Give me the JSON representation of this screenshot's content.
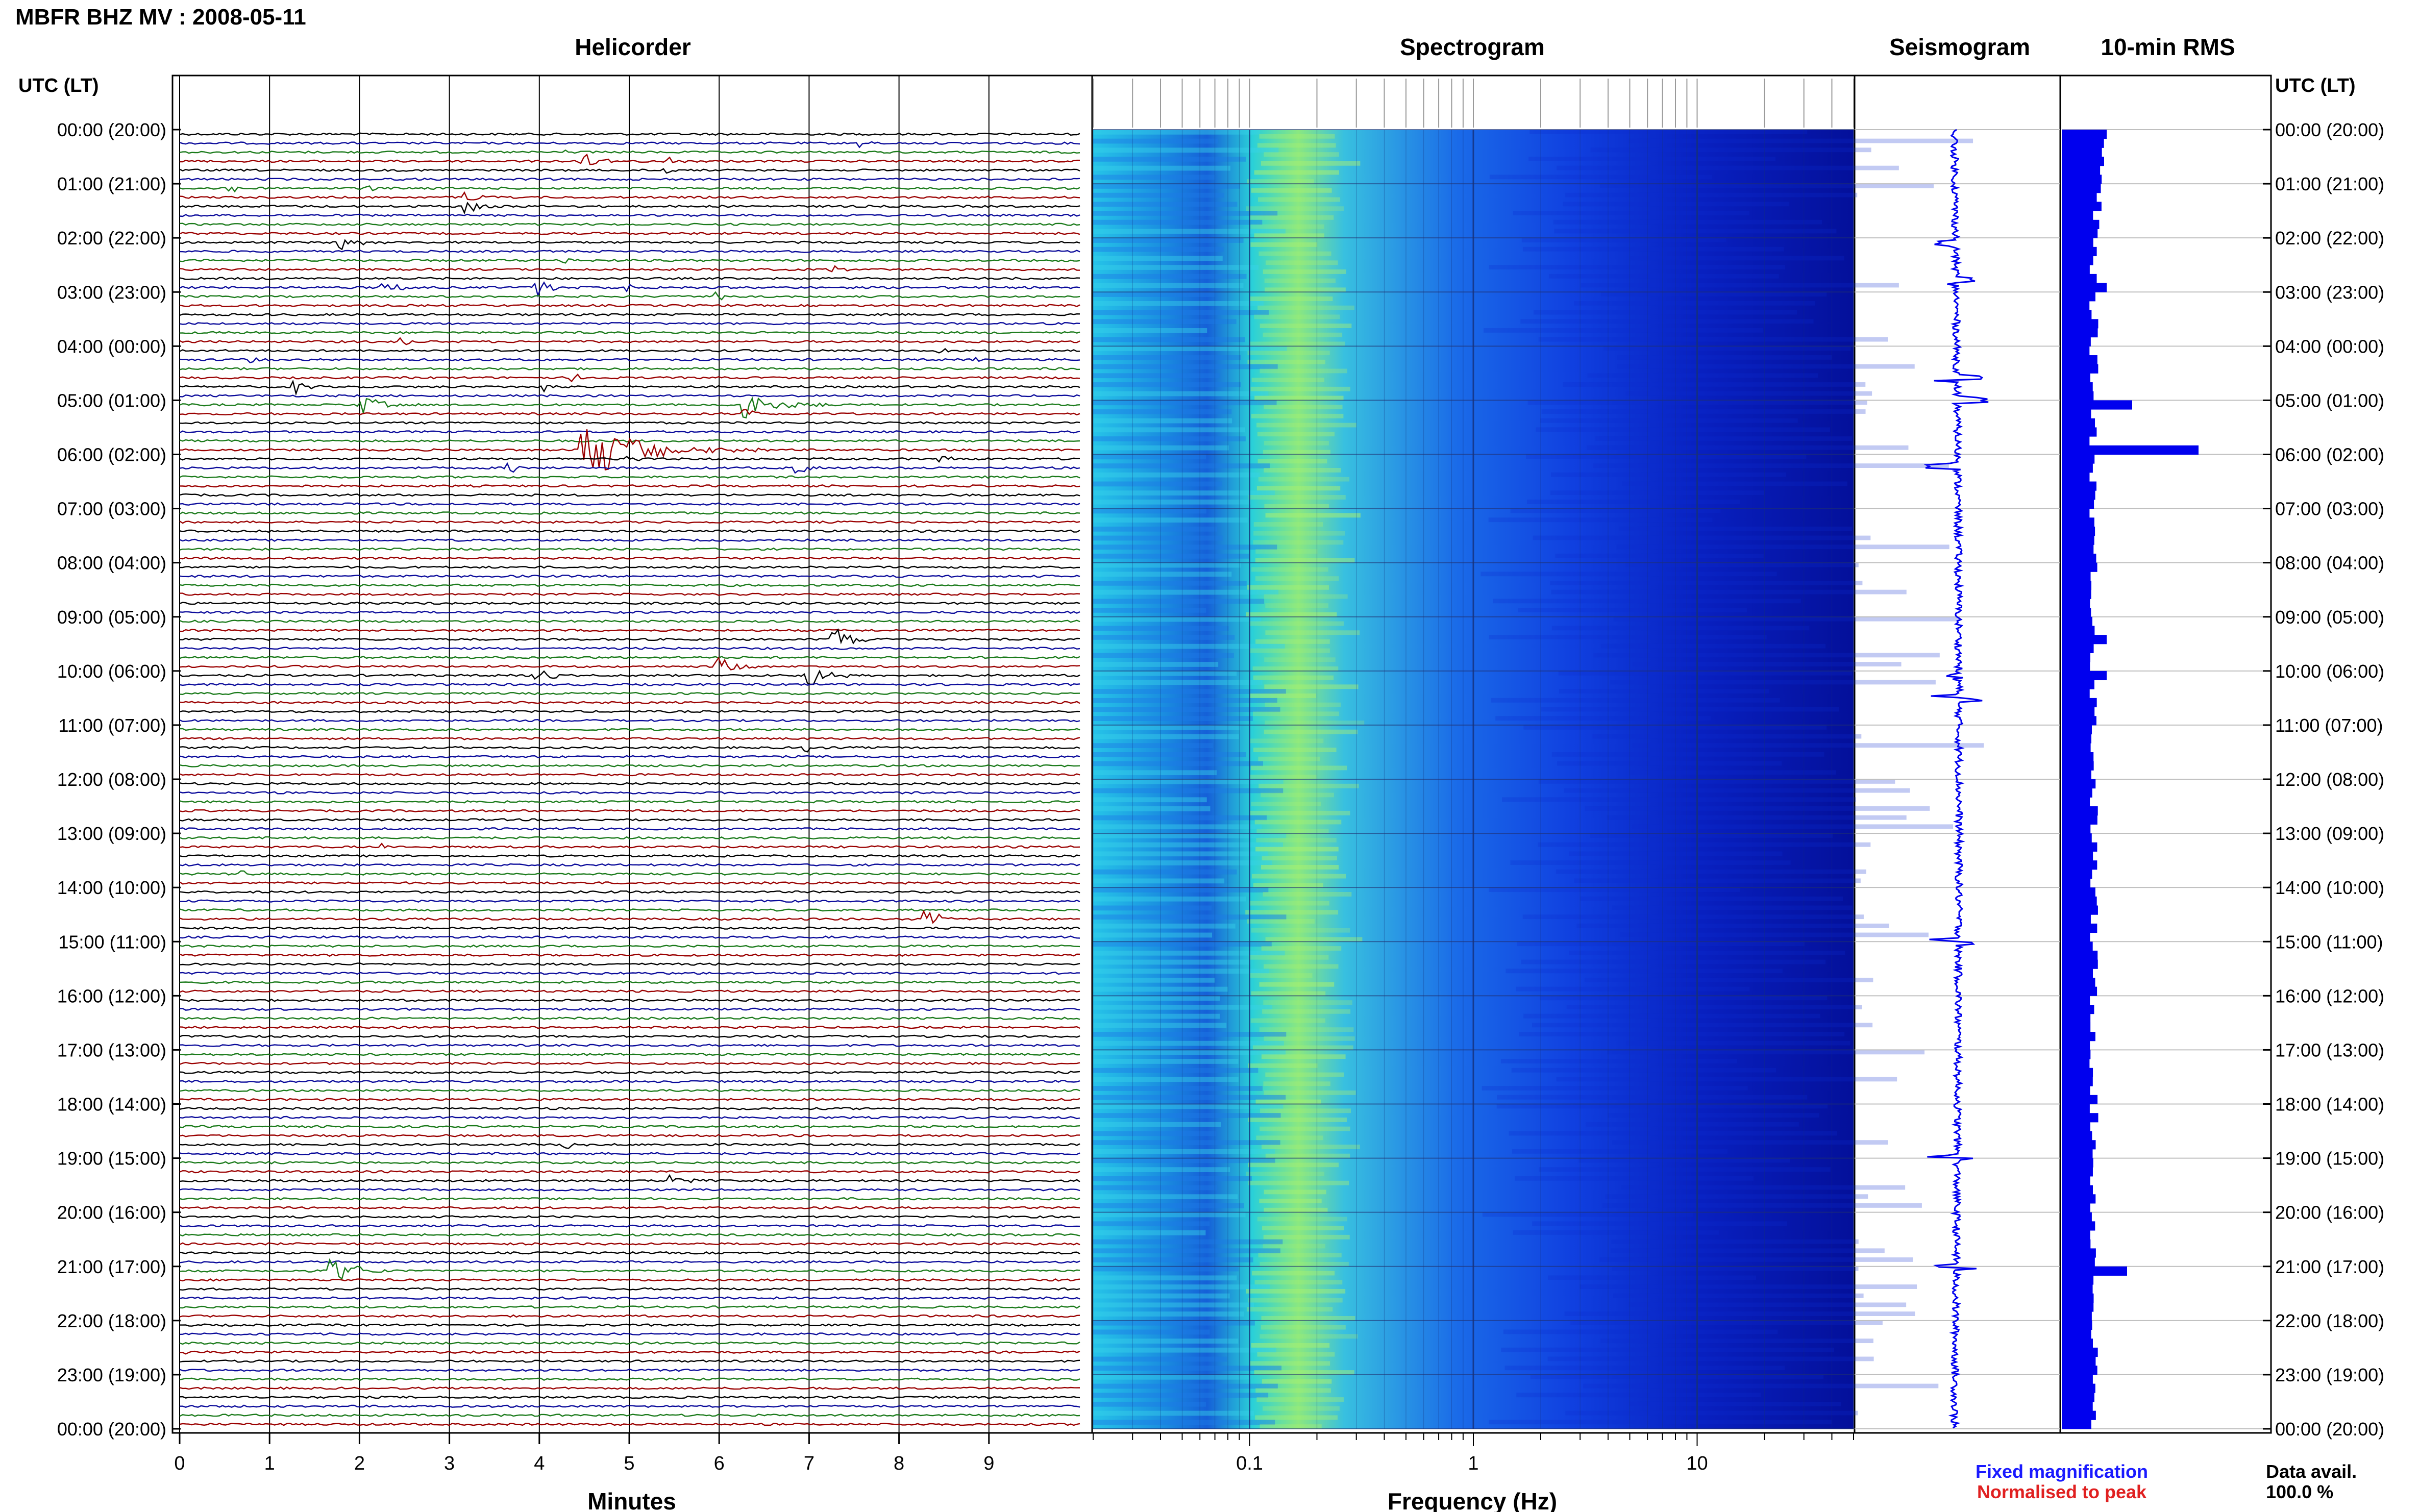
{
  "header": {
    "title": "MBFR BHZ MV : 2008-05-11",
    "utc_label": "UTC (LT)"
  },
  "panels": {
    "helicorder": "Helicorder",
    "spectrogram": "Spectrogram",
    "seismogram": "Seismogram",
    "rms": "10-min RMS"
  },
  "time_labels": [
    "00:00 (20:00)",
    "01:00 (21:00)",
    "02:00 (22:00)",
    "03:00 (23:00)",
    "04:00 (00:00)",
    "05:00 (01:00)",
    "06:00 (02:00)",
    "07:00 (03:00)",
    "08:00 (04:00)",
    "09:00 (05:00)",
    "10:00 (06:00)",
    "11:00 (07:00)",
    "12:00 (08:00)",
    "13:00 (09:00)",
    "14:00 (10:00)",
    "15:00 (11:00)",
    "16:00 (12:00)",
    "17:00 (13:00)",
    "18:00 (14:00)",
    "19:00 (15:00)",
    "20:00 (16:00)",
    "21:00 (17:00)",
    "22:00 (18:00)",
    "23:00 (19:00)",
    "00:00 (20:00)"
  ],
  "axes": {
    "helicorder_xlabel": "Minutes",
    "helicorder_ticks": [
      "0",
      "1",
      "2",
      "3",
      "4",
      "5",
      "6",
      "7",
      "8",
      "9"
    ],
    "spectrogram_xlabel": "Frequency (Hz)",
    "spectrogram_ticks": [
      "0.1",
      "1",
      "10"
    ]
  },
  "legend": {
    "fixed": "Fixed magnification",
    "normalised": "Normalised to peak",
    "fixed_color": "#1a1aff",
    "normalised_color": "#e02020"
  },
  "data_avail": {
    "label": "Data avail.",
    "value": "100.0 %"
  },
  "colors": {
    "trace_cycle": [
      "#000000",
      "#0a0a9a",
      "#1a7a1a",
      "#9a0000"
    ],
    "rms": "#0000ee",
    "seis": "#0000ee"
  },
  "chart_data": [
    {
      "type": "line",
      "name": "helicorder",
      "title": "Helicorder",
      "xlabel": "Minutes",
      "xlim": [
        0,
        10
      ],
      "rows": 144,
      "row_minutes": 10,
      "events": [
        {
          "row": 1,
          "minute": 7.6,
          "amp": 0.6
        },
        {
          "row": 2,
          "minute": 4.3,
          "amp": 0.5
        },
        {
          "row": 3,
          "minute": 4.5,
          "amp": 1.2
        },
        {
          "row": 3,
          "minute": 5.4,
          "amp": 0.9
        },
        {
          "row": 4,
          "minute": 5.4,
          "amp": 0.6
        },
        {
          "row": 6,
          "minute": 0.6,
          "amp": 0.5
        },
        {
          "row": 6,
          "minute": 2.1,
          "amp": 0.6
        },
        {
          "row": 7,
          "minute": 3.2,
          "amp": 0.9
        },
        {
          "row": 8,
          "minute": 3.2,
          "amp": 1.0
        },
        {
          "row": 12,
          "minute": 1.8,
          "amp": 1.2
        },
        {
          "row": 14,
          "minute": 4.3,
          "amp": 0.5
        },
        {
          "row": 15,
          "minute": 7.3,
          "amp": 0.5
        },
        {
          "row": 17,
          "minute": 2.3,
          "amp": 1.0
        },
        {
          "row": 17,
          "minute": 4.0,
          "amp": 1.3
        },
        {
          "row": 17,
          "minute": 5.0,
          "amp": 0.6
        },
        {
          "row": 18,
          "minute": 6.0,
          "amp": 0.8
        },
        {
          "row": 23,
          "minute": 2.5,
          "amp": 0.5
        },
        {
          "row": 24,
          "minute": 8.5,
          "amp": 0.7
        },
        {
          "row": 25,
          "minute": 0.8,
          "amp": 0.5
        },
        {
          "row": 25,
          "minute": 8.9,
          "amp": 0.5
        },
        {
          "row": 27,
          "minute": 4.4,
          "amp": 0.6
        },
        {
          "row": 28,
          "minute": 1.3,
          "amp": 0.9
        },
        {
          "row": 28,
          "minute": 4.1,
          "amp": 0.6
        },
        {
          "row": 30,
          "minute": 2.0,
          "amp": 1.6
        },
        {
          "row": 30,
          "minute": 6.3,
          "amp": 2.2
        },
        {
          "row": 31,
          "minute": 6.3,
          "amp": 1.0
        },
        {
          "row": 35,
          "minute": 4.5,
          "amp": 4.5
        },
        {
          "row": 36,
          "minute": 5.0,
          "amp": 0.6
        },
        {
          "row": 36,
          "minute": 8.5,
          "amp": 0.5
        },
        {
          "row": 37,
          "minute": 3.7,
          "amp": 0.8
        },
        {
          "row": 37,
          "minute": 6.9,
          "amp": 0.8
        },
        {
          "row": 56,
          "minute": 7.3,
          "amp": 1.6
        },
        {
          "row": 59,
          "minute": 6.0,
          "amp": 1.3
        },
        {
          "row": 60,
          "minute": 4.0,
          "amp": 1.0
        },
        {
          "row": 60,
          "minute": 7.0,
          "amp": 1.6
        },
        {
          "row": 68,
          "minute": 7.0,
          "amp": 0.5
        },
        {
          "row": 79,
          "minute": 2.3,
          "amp": 0.6
        },
        {
          "row": 82,
          "minute": 0.7,
          "amp": 0.6
        },
        {
          "row": 87,
          "minute": 8.3,
          "amp": 1.3
        },
        {
          "row": 95,
          "minute": 3.1,
          "amp": 0.5
        },
        {
          "row": 112,
          "minute": 4.3,
          "amp": 0.8
        },
        {
          "row": 116,
          "minute": 5.5,
          "amp": 1.0
        },
        {
          "row": 126,
          "minute": 1.7,
          "amp": 2.0
        },
        {
          "row": 135,
          "minute": 0.1,
          "amp": 0.5
        }
      ]
    },
    {
      "type": "heatmap",
      "name": "spectrogram",
      "title": "Spectrogram",
      "xlabel": "Frequency (Hz)",
      "xscale": "log",
      "xlim": [
        0.02,
        50
      ],
      "ticks": [
        0.1,
        1,
        10
      ],
      "peak_frequency_hz": 0.25,
      "colormap": "jet"
    },
    {
      "type": "line",
      "name": "seismogram",
      "title": "Seismogram",
      "spikes_hours": [
        2.1,
        2.8,
        4.6,
        5.0,
        6.2,
        10.1,
        10.5,
        15.0,
        19.0,
        21.0
      ]
    },
    {
      "type": "bar",
      "name": "rms",
      "title": "10-min RMS",
      "bins": 144,
      "baseline": 1.0,
      "peaks": [
        {
          "bin": 30,
          "value": 2.6
        },
        {
          "bin": 35,
          "value": 5.2
        },
        {
          "bin": 56,
          "value": 1.6
        },
        {
          "bin": 60,
          "value": 1.6
        },
        {
          "bin": 126,
          "value": 2.4
        },
        {
          "bin": 17,
          "value": 1.6
        },
        {
          "bin": 3,
          "value": 1.5
        }
      ]
    }
  ]
}
